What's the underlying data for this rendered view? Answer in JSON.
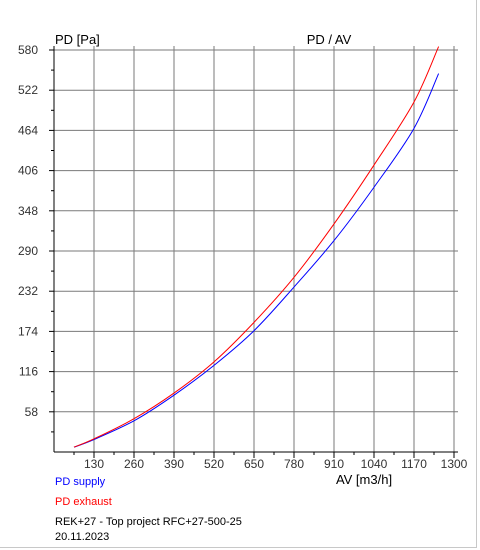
{
  "chart_data": {
    "type": "line",
    "title": "PD / AV",
    "ylabel": "PD [Pa]",
    "xlabel": "AV [m3/h]",
    "xlim": [
      0,
      1300
    ],
    "ylim": [
      0,
      580
    ],
    "x_ticks": [
      130,
      260,
      390,
      520,
      650,
      780,
      910,
      1040,
      1170,
      1300
    ],
    "y_ticks": [
      58,
      116,
      174,
      232,
      290,
      348,
      406,
      464,
      522,
      580
    ],
    "x_tick_labels": [
      "130",
      "260",
      "390",
      "520",
      "650",
      "780",
      "910",
      "1040",
      "1170",
      "1300"
    ],
    "y_tick_labels": [
      "58",
      "116",
      "174",
      "232",
      "290",
      "348",
      "406",
      "464",
      "522",
      "580"
    ],
    "grid": true,
    "series": [
      {
        "name": "PD supply",
        "color": "#0000ff",
        "x": [
          65,
          130,
          260,
          390,
          520,
          650,
          780,
          910,
          1040,
          1170,
          1250
        ],
        "y": [
          7,
          18,
          45,
          82,
          125,
          175,
          238,
          305,
          382,
          467,
          546
        ]
      },
      {
        "name": "PD exhaust",
        "color": "#ff0000",
        "x": [
          65,
          130,
          260,
          390,
          520,
          650,
          780,
          910,
          1040,
          1170,
          1250
        ],
        "y": [
          7,
          19,
          48,
          85,
          130,
          187,
          252,
          329,
          414,
          505,
          585
        ]
      }
    ]
  },
  "legend": {
    "supply": "PD supply",
    "exhaust": "PD exhaust"
  },
  "footer": {
    "line1": "REK+27   - Top project      RFC+27-500-25",
    "line2": "20.11.2023"
  }
}
